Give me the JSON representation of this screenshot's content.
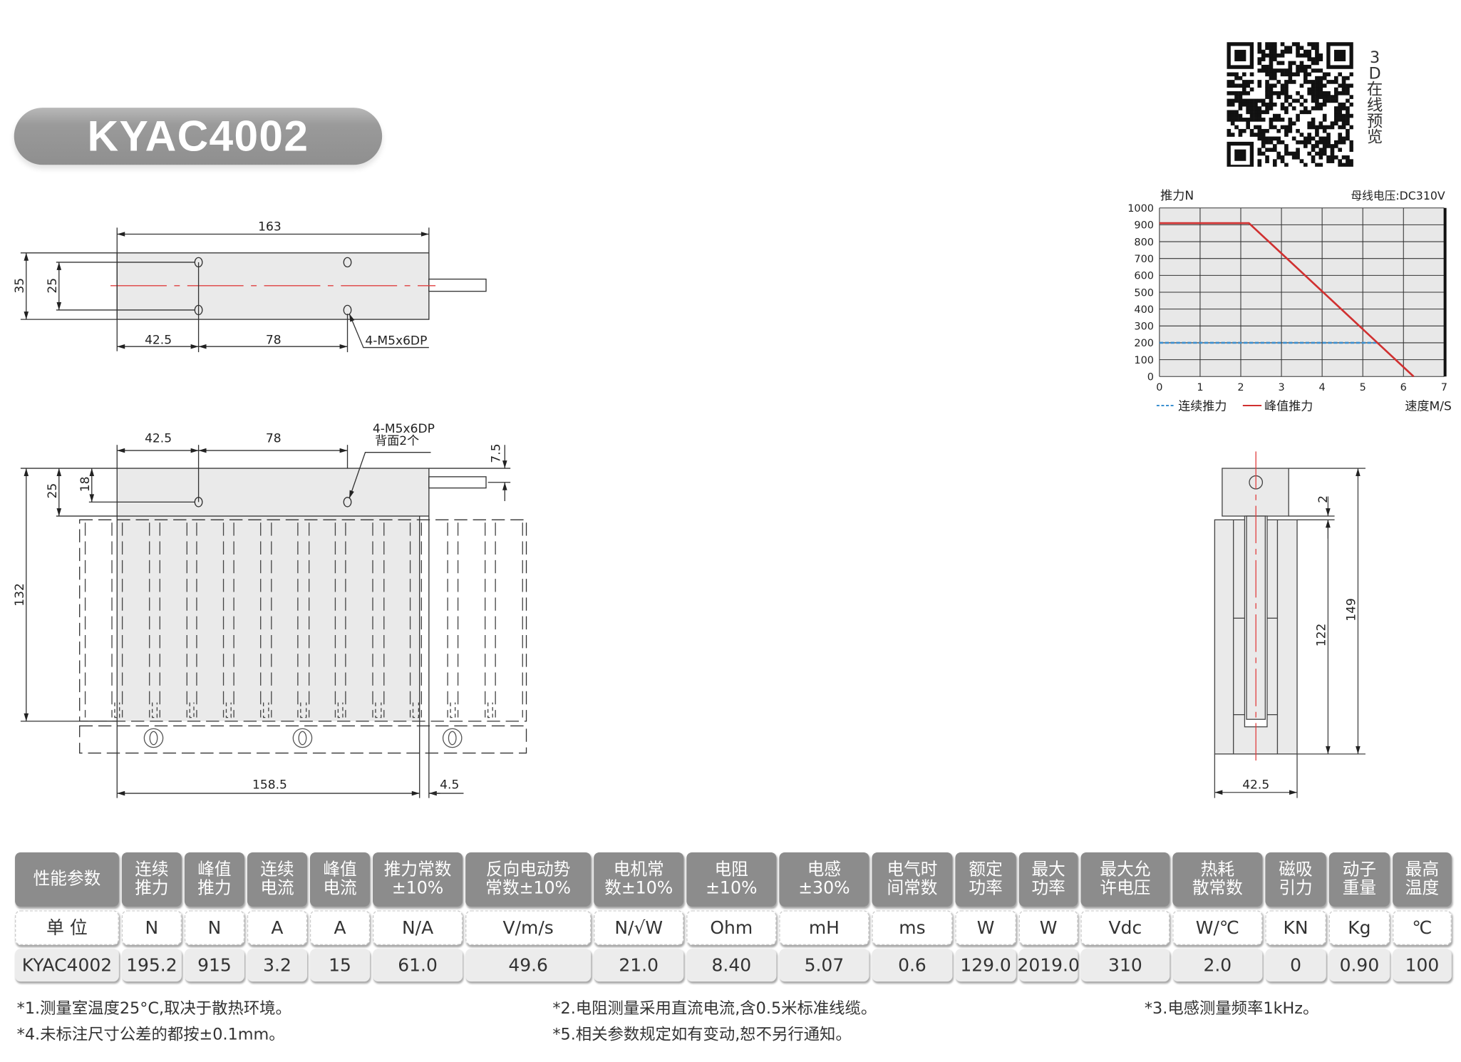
{
  "title": "KYAC4002",
  "qr": {
    "caption": "3D在线预览"
  },
  "drawings": {
    "top_view": {
      "length": "163",
      "height": "35",
      "hole_span": "25",
      "hole_offset": "42.5",
      "hole_pitch": "78",
      "hole_callout": "4-M5x6DP"
    },
    "front_view": {
      "hole_offset": "42.5",
      "hole_pitch": "78",
      "hole_callout": "4-M5x6DP",
      "hole_callout_note": "背面2个",
      "cable_offset": "7.5",
      "total_height": "132",
      "mover_height": "25",
      "hole_height": "18",
      "coil_length": "158.5",
      "gap": "4.5"
    },
    "side_view": {
      "gap": "2",
      "stator_height": "122",
      "total_height": "149",
      "width": "42.5"
    }
  },
  "chart_data": {
    "type": "line",
    "ylabel": "推力N",
    "xlabel": "速度M/S",
    "annotation": "母线电压:DC310V",
    "xlim": [
      0,
      7
    ],
    "ylim": [
      0,
      1000
    ],
    "x_ticks": [
      "0",
      "1",
      "2",
      "3",
      "4",
      "5",
      "6",
      "7"
    ],
    "y_ticks": [
      "0",
      "100",
      "200",
      "300",
      "400",
      "500",
      "600",
      "700",
      "800",
      "900",
      "1000"
    ],
    "grid": true,
    "legend_position": "bottom-left",
    "series": [
      {
        "name": "连续推力",
        "style": "dashed",
        "color": "#3a8fd0",
        "points": [
          [
            0,
            200
          ],
          [
            5.35,
            200
          ]
        ]
      },
      {
        "name": "峰值推力",
        "style": "solid",
        "color": "#d03030",
        "points": [
          [
            0,
            910
          ],
          [
            2.2,
            910
          ],
          [
            6.25,
            0
          ]
        ]
      }
    ]
  },
  "table": {
    "headers": [
      "性能参数",
      "连续\n推力",
      "峰值\n推力",
      "连续\n电流",
      "峰值\n电流",
      "推力常数\n±10%",
      "反向电动势\n常数±10%",
      "电机常\n数±10%",
      "电阻\n±10%",
      "电感\n±30%",
      "电气时\n间常数",
      "额定\n功率",
      "最大\n功率",
      "最大允\n许电压",
      "热耗\n散常数",
      "磁吸\n引力",
      "动子\n重量",
      "最高\n温度"
    ],
    "units": [
      "单 位",
      "N",
      "N",
      "A",
      "A",
      "N/A",
      "V/m/s",
      "N/√W",
      "Ohm",
      "mH",
      "ms",
      "W",
      "W",
      "Vdc",
      "W/℃",
      "KN",
      "Kg",
      "℃"
    ],
    "values": [
      "KYAC4002",
      "195.2",
      "915",
      "3.2",
      "15",
      "61.0",
      "49.6",
      "21.0",
      "8.40",
      "5.07",
      "0.6",
      "129.0",
      "2019.0",
      "310",
      "2.0",
      "0",
      "0.90",
      "100"
    ]
  },
  "notes": [
    "*1.测量室温度25°C,取决于散热环境。",
    "*2.电阻测量采用直流电流,含0.5米标准线缆。",
    "*3.电感测量频率1kHz。",
    "*4.未标注尺寸公差的都按±0.1mm。",
    "*5.相关参数规定如有变动,恕不另行通知。"
  ]
}
